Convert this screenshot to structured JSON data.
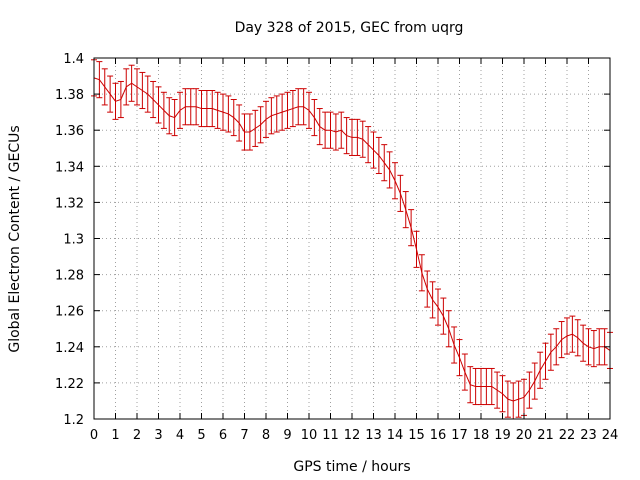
{
  "chart_data": {
    "type": "line",
    "title": "Day 328 of 2015, GEC from uqrg",
    "xlabel": "GPS time / hours",
    "ylabel": "Global Electron Content / GECUs",
    "xlim": [
      0,
      24
    ],
    "ylim": [
      1.2,
      1.4
    ],
    "xticks": [
      "0",
      "1",
      "2",
      "3",
      "4",
      "5",
      "6",
      "7",
      "8",
      "9",
      "10",
      "11",
      "12",
      "13",
      "14",
      "15",
      "16",
      "17",
      "18",
      "19",
      "20",
      "21",
      "22",
      "23",
      "24"
    ],
    "yticks": [
      "1.2",
      "1.22",
      "1.24",
      "1.26",
      "1.28",
      "1.3",
      "1.32",
      "1.34",
      "1.36",
      "1.38",
      "1.4"
    ],
    "grid": true,
    "legend": "none",
    "series_color": "#cc0000",
    "error_bar": 0.01,
    "x": [
      0,
      0.25,
      0.5,
      0.75,
      1,
      1.25,
      1.5,
      1.75,
      2,
      2.25,
      2.5,
      2.75,
      3,
      3.25,
      3.5,
      3.75,
      4,
      4.25,
      4.5,
      4.75,
      5,
      5.25,
      5.5,
      5.75,
      6,
      6.25,
      6.5,
      6.75,
      7,
      7.25,
      7.5,
      7.75,
      8,
      8.25,
      8.5,
      8.75,
      9,
      9.25,
      9.5,
      9.75,
      10,
      10.25,
      10.5,
      10.75,
      11,
      11.25,
      11.5,
      11.75,
      12,
      12.25,
      12.5,
      12.75,
      13,
      13.25,
      13.5,
      13.75,
      14,
      14.25,
      14.5,
      14.75,
      15,
      15.25,
      15.5,
      15.75,
      16,
      16.25,
      16.5,
      16.75,
      17,
      17.25,
      17.5,
      17.75,
      18,
      18.25,
      18.5,
      18.75,
      19,
      19.25,
      19.5,
      19.75,
      20,
      20.25,
      20.5,
      20.75,
      21,
      21.25,
      21.5,
      21.75,
      22,
      22.25,
      22.5,
      22.75,
      23,
      23.25,
      23.5,
      23.75,
      24
    ],
    "y": [
      1.389,
      1.388,
      1.384,
      1.38,
      1.376,
      1.377,
      1.384,
      1.386,
      1.384,
      1.382,
      1.38,
      1.377,
      1.374,
      1.371,
      1.368,
      1.367,
      1.371,
      1.373,
      1.373,
      1.373,
      1.372,
      1.372,
      1.372,
      1.371,
      1.37,
      1.369,
      1.367,
      1.364,
      1.359,
      1.359,
      1.361,
      1.363,
      1.366,
      1.368,
      1.369,
      1.37,
      1.371,
      1.372,
      1.373,
      1.373,
      1.371,
      1.367,
      1.362,
      1.36,
      1.36,
      1.359,
      1.36,
      1.357,
      1.356,
      1.356,
      1.355,
      1.352,
      1.349,
      1.346,
      1.342,
      1.338,
      1.332,
      1.325,
      1.316,
      1.306,
      1.294,
      1.281,
      1.272,
      1.266,
      1.262,
      1.257,
      1.25,
      1.241,
      1.234,
      1.226,
      1.219,
      1.218,
      1.218,
      1.218,
      1.218,
      1.216,
      1.214,
      1.211,
      1.21,
      1.211,
      1.212,
      1.216,
      1.221,
      1.227,
      1.232,
      1.237,
      1.24,
      1.244,
      1.246,
      1.247,
      1.245,
      1.242,
      1.24,
      1.239,
      1.24,
      1.24,
      1.238
    ]
  }
}
